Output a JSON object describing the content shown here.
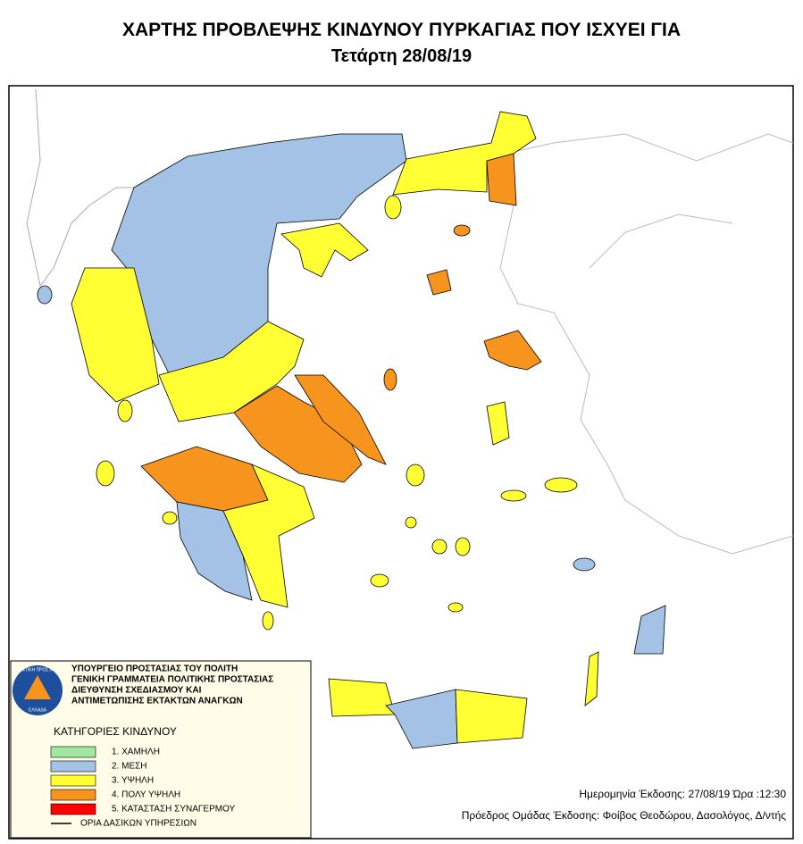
{
  "header": {
    "title": "ΧΑΡΤΗΣ ΠΡΟΒΛΕΨΗΣ ΚΙΝΔΥΝΟΥ ΠΥΡΚΑΓΙΑΣ ΠΟΥ ΙΣΧΥΕΙ ΓΙΑ",
    "subtitle": "Τετάρτη 28/08/19"
  },
  "legend": {
    "logo_top": "ΠΟΛΙΤΙΚΗ ΠΡΟΣΤΑΣΙΑ",
    "logo_bottom": "ΕΛΛΑΔΑ",
    "agency": [
      "ΥΠΟΥΡΓΕΙΟ ΠΡΟΣΤΑΣΙΑΣ ΤΟΥ ΠΟΛΙΤΗ",
      "ΓΕΝΙΚΗ ΓΡΑΜΜΑΤΕΙΑ ΠΟΛΙΤΙΚΗΣ ΠΡΟΣΤΑΣΙΑΣ",
      "ΔΙΕΥΘΥΝΣΗ ΣΧΕΔΙΑΣΜΟΥ ΚΑΙ",
      "ΑΝΤΙΜΕΤΩΠΙΣΗΣ ΕΚΤΑΚΤΩΝ ΑΝΑΓΚΩΝ"
    ],
    "heading": "ΚΑΤΗΓΟΡΙΕΣ ΚΙΝΔΥΝΟΥ",
    "categories": [
      {
        "label": "1. ΧΑΜΗΛΗ",
        "color": "#a3e8a0"
      },
      {
        "label": "2. ΜΕΣΗ",
        "color": "#a3c2e6"
      },
      {
        "label": "3. ΥΨΗΛΗ",
        "color": "#ffff33"
      },
      {
        "label": "4. ΠΟΛΥ ΥΨΗΛΗ",
        "color": "#f7941d"
      },
      {
        "label": "5. ΚΑΤΑΣΤΑΣΗ ΣΥΝΑΓΕΡΜΟΥ",
        "color": "#ff0000"
      }
    ],
    "boundary": "ΟΡΙΑ ΔΑΣΙΚΩΝ ΥΠΗΡΕΣΙΩΝ"
  },
  "footer": {
    "issued": "Ημερομηνία Έκδοσης: 27/08/19  Ώρα :12:30",
    "author": "Πρόεδρος Ομάδας Έκδοσης: Φοίβος Θεοδώρου,  Δασολόγος, Δ/ντής"
  }
}
